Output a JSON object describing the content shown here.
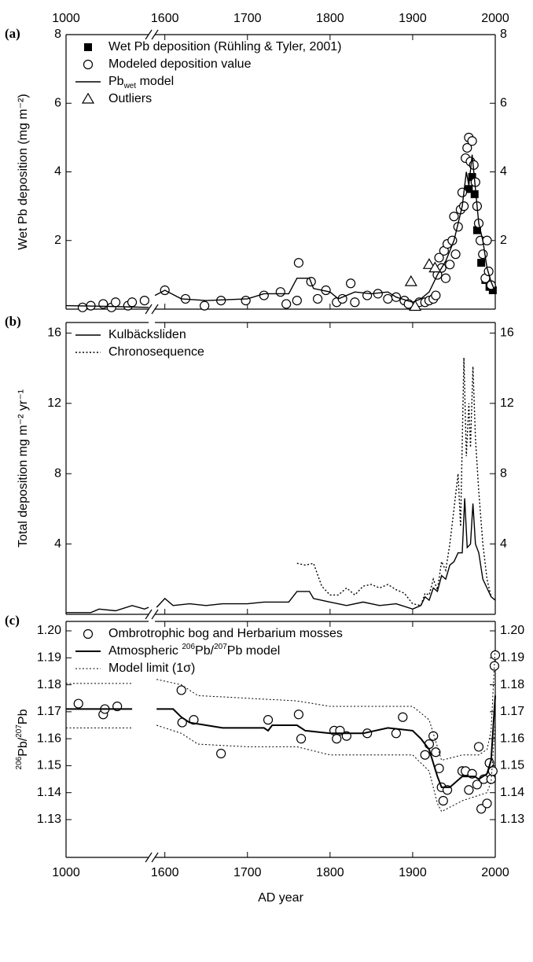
{
  "chart_data": [
    {
      "type": "line",
      "panel_label": "(a)",
      "ylabel": "Wet Pb deposition (mg m⁻²)",
      "xlim": [
        1000,
        2000
      ],
      "x_break": [
        1100,
        1588
      ],
      "xticks": [
        1000,
        1600,
        1700,
        1800,
        1900,
        2000
      ],
      "xtick_labels": "top",
      "ylim": [
        0,
        8
      ],
      "yticks": [
        2,
        4,
        6,
        8
      ],
      "right_labels": true,
      "legend": "upper left",
      "series": [
        {
          "name": "Wet Pb deposition (Rühling & Tyler, 2001)",
          "kind": "scatter",
          "marker": "square",
          "color": "#000",
          "x": [
            1968,
            1972,
            1975,
            1978,
            1983,
            1988,
            1993,
            1997
          ],
          "values": [
            3.5,
            3.85,
            3.35,
            2.3,
            1.35,
            0.85,
            0.65,
            0.55
          ]
        },
        {
          "name": "Modeled deposition value",
          "kind": "scatter",
          "marker": "circle",
          "color": "#000",
          "x": [
            1020,
            1030,
            1045,
            1055,
            1060,
            1075,
            1080,
            1095,
            1600,
            1625,
            1648,
            1668,
            1698,
            1720,
            1740,
            1747,
            1760,
            1762,
            1777,
            1785,
            1795,
            1808,
            1815,
            1825,
            1830,
            1845,
            1858,
            1870,
            1880,
            1890,
            1895,
            1908,
            1915,
            1920,
            1925,
            1928,
            1930,
            1932,
            1935,
            1938,
            1940,
            1942,
            1945,
            1948,
            1950,
            1952,
            1955,
            1958,
            1960,
            1962,
            1964,
            1966,
            1968,
            1970,
            1972,
            1974,
            1976,
            1978,
            1980,
            1982,
            1985,
            1988,
            1990,
            1992,
            1995
          ],
          "values": [
            0.05,
            0.1,
            0.15,
            0.05,
            0.2,
            0.1,
            0.2,
            0.25,
            0.55,
            0.3,
            0.1,
            0.25,
            0.25,
            0.4,
            0.5,
            0.15,
            0.25,
            1.35,
            0.8,
            0.3,
            0.55,
            0.2,
            0.3,
            0.75,
            0.2,
            0.4,
            0.45,
            0.3,
            0.35,
            0.25,
            0.15,
            0.2,
            0.2,
            0.25,
            0.3,
            0.4,
            1.0,
            1.5,
            1.2,
            1.7,
            0.9,
            1.9,
            1.3,
            2.0,
            2.7,
            1.6,
            2.4,
            2.9,
            3.4,
            3.0,
            4.4,
            4.7,
            5.0,
            4.3,
            4.9,
            4.2,
            3.7,
            3.0,
            2.5,
            2.0,
            1.6,
            0.9,
            2.0,
            1.1,
            0.7
          ]
        },
        {
          "name": [
            "Pb",
            "wet",
            " model"
          ],
          "name_sub": [
            1
          ],
          "kind": "line",
          "dash": "solid",
          "color": "#000",
          "x": [
            1000,
            1050,
            1100,
            1588,
            1600,
            1620,
            1650,
            1700,
            1720,
            1750,
            1760,
            1775,
            1780,
            1800,
            1810,
            1830,
            1850,
            1870,
            1880,
            1900,
            1910,
            1920,
            1930,
            1940,
            1950,
            1960,
            1965,
            1968,
            1972,
            1976,
            1980,
            1985,
            1990,
            1995,
            2000
          ],
          "values": [
            0.1,
            0.08,
            0.05,
            0.4,
            0.55,
            0.3,
            0.25,
            0.3,
            0.45,
            0.45,
            0.9,
            0.9,
            0.6,
            0.5,
            0.3,
            0.5,
            0.45,
            0.5,
            0.35,
            0.2,
            0.3,
            0.5,
            1.0,
            1.4,
            2.0,
            3.0,
            4.0,
            3.6,
            4.5,
            3.5,
            2.5,
            2.0,
            1.2,
            0.8,
            0.5
          ]
        },
        {
          "name": "Outliers",
          "kind": "scatter",
          "marker": "triangle",
          "color": "#000",
          "x": [
            1898,
            1903,
            1920,
            1927
          ],
          "values": [
            0.8,
            0.08,
            1.3,
            1.2
          ]
        }
      ]
    },
    {
      "type": "line",
      "panel_label": "(b)",
      "ylabel": "Total deposition mg m⁻² yr⁻¹",
      "xlim": [
        1000,
        2000
      ],
      "x_break": [
        1100,
        1588
      ],
      "xticks": [
        1000,
        1600,
        1700,
        1800,
        1900,
        2000
      ],
      "xtick_labels": "none",
      "ylim": [
        0,
        16.6
      ],
      "yticks": [
        4,
        8,
        12,
        16
      ],
      "right_labels": true,
      "legend": "upper left",
      "series": [
        {
          "name": "Kulbäcksliden",
          "kind": "line",
          "dash": "solid",
          "color": "#000",
          "x": [
            1000,
            1030,
            1040,
            1060,
            1080,
            1095,
            1100,
            1590,
            1600,
            1610,
            1630,
            1650,
            1670,
            1700,
            1720,
            1750,
            1760,
            1775,
            1780,
            1800,
            1820,
            1840,
            1860,
            1880,
            1900,
            1910,
            1915,
            1920,
            1925,
            1930,
            1935,
            1940,
            1945,
            1950,
            1955,
            1960,
            1963,
            1966,
            1970,
            1973,
            1976,
            1980,
            1985,
            1990,
            1995,
            2000
          ],
          "values": [
            0.1,
            0.1,
            0.3,
            0.2,
            0.5,
            0.3,
            0.4,
            0.4,
            0.9,
            0.5,
            0.6,
            0.5,
            0.6,
            0.6,
            0.7,
            0.7,
            1.3,
            1.3,
            0.9,
            0.7,
            0.5,
            0.7,
            0.5,
            0.6,
            0.3,
            0.5,
            1.0,
            0.8,
            1.5,
            1.3,
            2.2,
            2.0,
            2.8,
            3.0,
            3.5,
            3.5,
            6.6,
            3.8,
            4.0,
            6.3,
            4.0,
            3.5,
            2.0,
            1.5,
            1.0,
            0.8
          ]
        },
        {
          "name": "Chronosequence",
          "kind": "line",
          "dash": "dotted",
          "color": "#000",
          "x": [
            1760,
            1770,
            1780,
            1790,
            1800,
            1810,
            1820,
            1830,
            1840,
            1850,
            1860,
            1870,
            1880,
            1890,
            1900,
            1910,
            1915,
            1920,
            1925,
            1930,
            1935,
            1940,
            1945,
            1950,
            1955,
            1958,
            1962,
            1965,
            1968,
            1970,
            1973,
            1976,
            1980,
            1985,
            1990,
            1995
          ],
          "values": [
            2.9,
            2.8,
            2.9,
            1.6,
            1.1,
            1.1,
            1.5,
            1.1,
            1.6,
            1.7,
            1.5,
            1.7,
            1.4,
            1.2,
            0.6,
            0.5,
            1.2,
            1.1,
            2.0,
            1.4,
            3.0,
            2.5,
            4.0,
            6.0,
            8.0,
            5.0,
            14.6,
            9.0,
            12.0,
            9.5,
            14.1,
            10.0,
            7.0,
            4.0,
            2.0,
            1.0
          ]
        }
      ]
    },
    {
      "type": "line",
      "panel_label": "(c)",
      "ylabel": [
        "206",
        "Pb/",
        "207",
        "Pb"
      ],
      "ylabel_sup": [
        0,
        2
      ],
      "xlabel": "AD year",
      "xlim": [
        1000,
        2000
      ],
      "x_break": [
        1100,
        1588
      ],
      "xticks": [
        1000,
        1600,
        1700,
        1800,
        1900,
        2000
      ],
      "xtick_labels": "bottom",
      "ylim": [
        1.116,
        1.2035
      ],
      "yticks": [
        1.13,
        1.14,
        1.15,
        1.16,
        1.17,
        1.18,
        1.19,
        {
          "value": 1.2,
          "label": "1.20"
        }
      ],
      "right_labels": true,
      "legend": "upper left",
      "series": [
        {
          "name": "Ombrotrophic bog and Herbarium mosses",
          "kind": "scatter",
          "marker": "circle",
          "color": "#000",
          "x": [
            1015,
            1045,
            1047,
            1062,
            1620,
            1621,
            1635,
            1668,
            1725,
            1762,
            1765,
            1805,
            1808,
            1812,
            1820,
            1845,
            1880,
            1888,
            1915,
            1920,
            1925,
            1928,
            1932,
            1935,
            1937,
            1942,
            1960,
            1964,
            1968,
            1972,
            1978,
            1980,
            1983,
            1986,
            1990,
            1993,
            1995,
            1997,
            1999,
            2000
          ],
          "values": [
            1.173,
            1.169,
            1.171,
            1.172,
            1.178,
            1.166,
            1.167,
            1.1545,
            1.167,
            1.169,
            1.16,
            1.163,
            1.16,
            1.163,
            1.161,
            1.162,
            1.162,
            1.168,
            1.154,
            1.158,
            1.161,
            1.155,
            1.149,
            1.142,
            1.137,
            1.141,
            1.148,
            1.148,
            1.141,
            1.147,
            1.143,
            1.157,
            1.134,
            1.145,
            1.136,
            1.151,
            1.145,
            1.148,
            1.187,
            1.191
          ]
        },
        {
          "name": [
            "Atmospheric ",
            "206",
            "Pb/",
            "207",
            "Pb model"
          ],
          "name_sup": [
            1,
            3
          ],
          "kind": "line",
          "dash": "solid",
          "width": 2,
          "color": "#000",
          "x": [
            1000,
            1080,
            1590,
            1610,
            1620,
            1630,
            1650,
            1670,
            1700,
            1720,
            1725,
            1730,
            1760,
            1770,
            1800,
            1840,
            1870,
            1900,
            1910,
            1920,
            1930,
            1935,
            1945,
            1960,
            1975,
            1980,
            1990,
            1995,
            2000
          ],
          "values": [
            1.171,
            1.171,
            1.171,
            1.171,
            1.168,
            1.166,
            1.165,
            1.164,
            1.164,
            1.164,
            1.163,
            1.165,
            1.165,
            1.163,
            1.162,
            1.162,
            1.164,
            1.163,
            1.16,
            1.156,
            1.146,
            1.142,
            1.142,
            1.146,
            1.146,
            1.145,
            1.147,
            1.152,
            1.176
          ]
        },
        {
          "name": "Model limit (1σ)",
          "kind": "line",
          "dash": "dotted",
          "width": 1,
          "color": "#000",
          "x": [
            1000,
            1080,
            1590,
            1620,
            1640,
            1700,
            1760,
            1800,
            1850,
            1900,
            1920,
            1930,
            1935,
            1960,
            1980,
            1990,
            1995,
            2000
          ],
          "values": [
            1.1805,
            1.1805,
            1.182,
            1.18,
            1.176,
            1.175,
            1.174,
            1.172,
            1.172,
            1.172,
            1.167,
            1.157,
            1.152,
            1.154,
            1.154,
            1.156,
            1.163,
            1.194
          ]
        },
        {
          "kind": "line",
          "dash": "dotted",
          "width": 1,
          "color": "#000",
          "x": [
            1000,
            1080,
            1590,
            1620,
            1640,
            1700,
            1760,
            1800,
            1850,
            1900,
            1920,
            1930,
            1935,
            1960,
            1980,
            1990,
            1995,
            2000
          ],
          "values": [
            1.164,
            1.164,
            1.165,
            1.162,
            1.158,
            1.157,
            1.157,
            1.154,
            1.154,
            1.154,
            1.148,
            1.136,
            1.133,
            1.137,
            1.139,
            1.14,
            1.144,
            1.166
          ]
        }
      ]
    }
  ]
}
